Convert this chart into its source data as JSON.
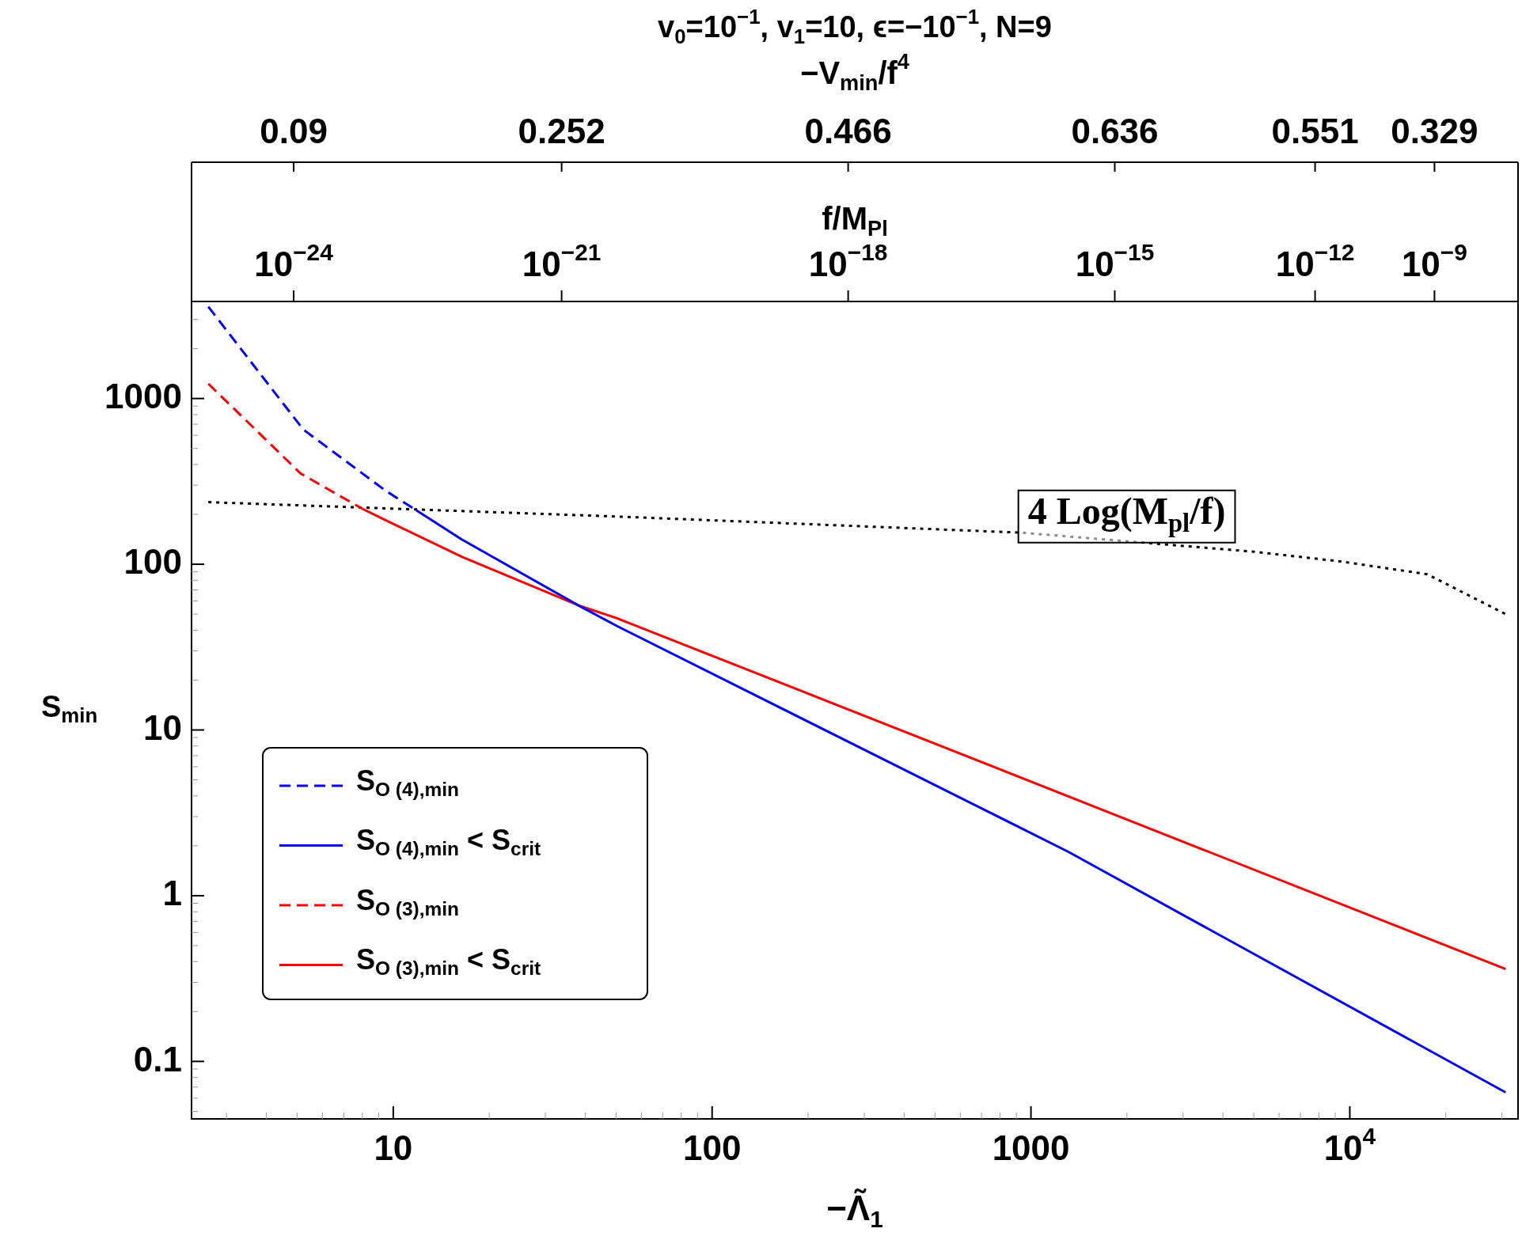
{
  "chart_data": {
    "type": "line",
    "title": "v$_{0}$=10$^{−1}$, v$_{1}$=10, ϵ=−10$^{−1}$, N=9",
    "xlabel": "−Λ̃$_{1}$",
    "ylabel": "S$_{min}$",
    "x2label": "f/M$_{Pl}$",
    "log": "xy",
    "legend": "bottom left",
    "xlim": [
      2.33,
      33700
    ],
    "ylim": [
      0.045,
      3850
    ],
    "xticks": [
      {
        "value": 3,
        "label": null
      },
      {
        "value": 4,
        "label": null
      },
      {
        "value": 5,
        "label": null
      },
      {
        "value": 6,
        "label": null
      },
      {
        "value": 7,
        "label": null
      },
      {
        "value": 8,
        "label": null
      },
      {
        "value": 9,
        "label": null
      },
      10,
      {
        "value": 20,
        "label": null
      },
      {
        "value": 30,
        "label": null
      },
      {
        "value": 40,
        "label": null
      },
      {
        "value": 50,
        "label": null
      },
      {
        "value": 60,
        "label": null
      },
      {
        "value": 70,
        "label": null
      },
      {
        "value": 80,
        "label": null
      },
      {
        "value": 90,
        "label": null
      },
      100,
      {
        "value": 200,
        "label": null
      },
      {
        "value": 300,
        "label": null
      },
      {
        "value": 400,
        "label": null
      },
      {
        "value": 500,
        "label": null
      },
      {
        "value": 600,
        "label": null
      },
      {
        "value": 700,
        "label": null
      },
      {
        "value": 800,
        "label": null
      },
      {
        "value": 900,
        "label": null
      },
      1000,
      {
        "value": 2000,
        "label": null
      },
      {
        "value": 3000,
        "label": null
      },
      {
        "value": 4000,
        "label": null
      },
      {
        "value": 5000,
        "label": null
      },
      {
        "value": 6000,
        "label": null
      },
      {
        "value": 7000,
        "label": null
      },
      {
        "value": 8000,
        "label": null
      },
      {
        "value": 9000,
        "label": null
      },
      {
        "value": 10000,
        "label": "10$^{4}$"
      },
      {
        "value": 20000,
        "label": null
      },
      {
        "value": 30000,
        "label": null
      }
    ],
    "yticks": [
      {
        "value": 0.05,
        "label": null
      },
      {
        "value": 0.06,
        "label": null
      },
      {
        "value": 0.07,
        "label": null
      },
      {
        "value": 0.08,
        "label": null
      },
      {
        "value": 0.09,
        "label": null
      },
      0.1,
      {
        "value": 0.2,
        "label": null
      },
      {
        "value": 0.3,
        "label": null
      },
      {
        "value": 0.4,
        "label": null
      },
      {
        "value": 0.5,
        "label": null
      },
      {
        "value": 0.6,
        "label": null
      },
      {
        "value": 0.7,
        "label": null
      },
      {
        "value": 0.8,
        "label": null
      },
      {
        "value": 0.9,
        "label": null
      },
      1,
      {
        "value": 2,
        "label": null
      },
      {
        "value": 3,
        "label": null
      },
      {
        "value": 4,
        "label": null
      },
      {
        "value": 5,
        "label": null
      },
      {
        "value": 6,
        "label": null
      },
      {
        "value": 7,
        "label": null
      },
      {
        "value": 8,
        "label": null
      },
      {
        "value": 9,
        "label": null
      },
      10,
      {
        "value": 20,
        "label": null
      },
      {
        "value": 30,
        "label": null
      },
      {
        "value": 40,
        "label": null
      },
      {
        "value": 50,
        "label": null
      },
      {
        "value": 60,
        "label": null
      },
      {
        "value": 70,
        "label": null
      },
      {
        "value": 80,
        "label": null
      },
      {
        "value": 90,
        "label": null
      },
      100,
      {
        "value": 200,
        "label": null
      },
      {
        "value": 300,
        "label": null
      },
      {
        "value": 400,
        "label": null
      },
      {
        "value": 500,
        "label": null
      },
      {
        "value": 600,
        "label": null
      },
      {
        "value": 700,
        "label": null
      },
      {
        "value": 800,
        "label": null
      },
      {
        "value": 900,
        "label": null
      },
      1000,
      {
        "value": 2000,
        "label": null
      },
      {
        "value": 3000,
        "label": null
      }
    ],
    "series": [
      {
        "name": "S$_{O (4),min}$",
        "color": "#0000ff",
        "line_style": "dashed",
        "x": [
          2.63,
          5.22,
          9.43,
          11.8
        ],
        "values": [
          3580,
          650,
          279,
          212
        ]
      },
      {
        "name": "S$_{O (4),min}$ < S$_{crit}$",
        "color": "#0000ff",
        "line_style": "solid",
        "x": [
          11.8,
          16.4,
          38.5,
          50.5,
          1310,
          30800
        ],
        "values": [
          212,
          141,
          55.8,
          42.2,
          1.84,
          0.065
        ]
      },
      {
        "name": "S$_{O (3),min}$",
        "color": "#ff0000",
        "line_style": "dashed",
        "x": [
          2.63,
          5.12,
          8.0
        ],
        "values": [
          1227,
          353,
          216
        ]
      },
      {
        "name": "S$_{O (3),min}$ < S$_{crit}$",
        "color": "#ff0000",
        "line_style": "solid",
        "x": [
          8.0,
          9.43,
          16.4,
          38.5,
          50.5,
          30800
        ],
        "values": [
          216,
          185,
          111,
          56,
          47.1,
          0.361
        ]
      },
      {
        "color": "#000000",
        "line_style": "dotted",
        "x": [
          2.63,
          50.5,
          940,
          5000,
          9350,
          17500,
          30800
        ],
        "values": [
          237,
          194,
          155,
          119,
          104,
          87,
          50
        ]
      }
    ],
    "annotations": [
      "4 Log(M$_{pl}$/f)",
      "−V$_{min}$/f$^{4}$",
      "0.09",
      "0.252",
      "0.466",
      "0.636",
      "0.551",
      "0.329",
      "10$^{−24}$",
      "10$^{−21}$",
      "10$^{−18}$",
      "10$^{−15}$",
      "10$^{−12}$",
      "10$^{−9}$"
    ]
  }
}
